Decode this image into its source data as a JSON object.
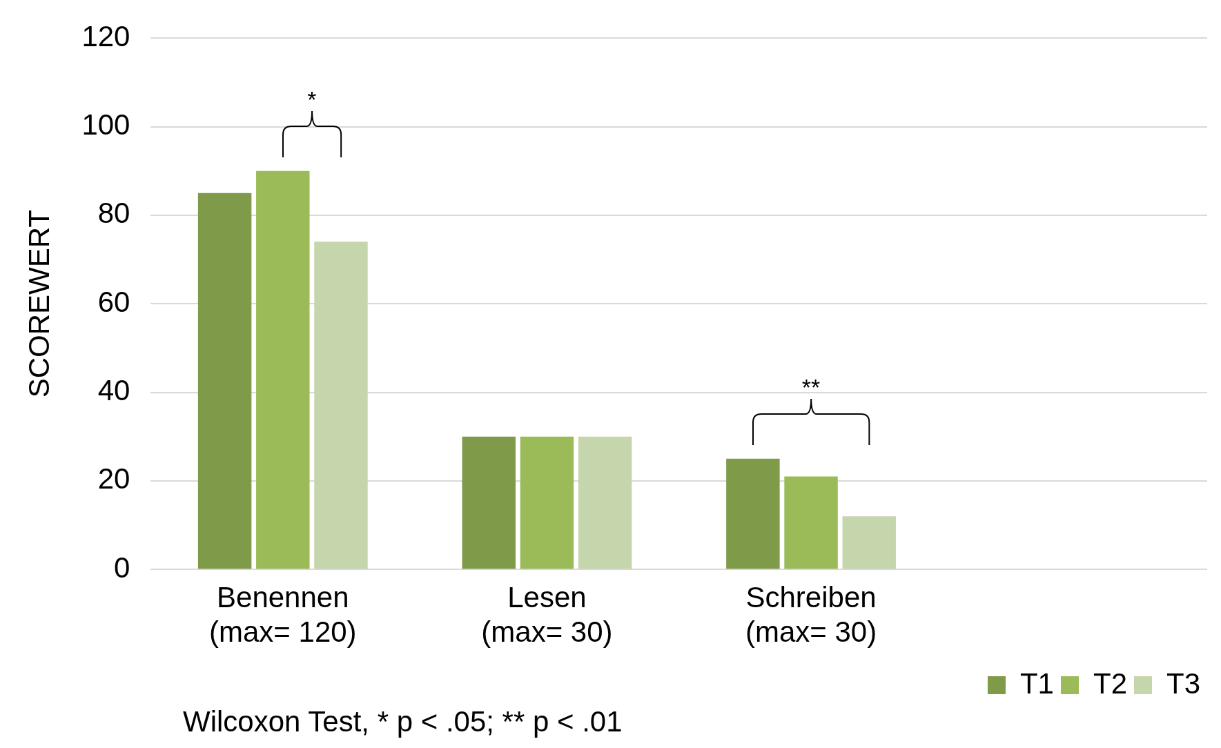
{
  "chart_data": {
    "type": "bar",
    "ylabel": "SCOREWERT",
    "categories": [
      "Benennen\n(max= 120)",
      "Lesen\n(max= 30)",
      "Schreiben\n(max= 30)",
      null
    ],
    "series": [
      {
        "name": "T1",
        "color": "#7f9a48",
        "values": [
          85,
          30,
          25,
          null
        ]
      },
      {
        "name": "T2",
        "color": "#9bbb59",
        "values": [
          90,
          30,
          21,
          null
        ]
      },
      {
        "name": "T3",
        "color": "#c6d6ac",
        "values": [
          74,
          30,
          12,
          null
        ]
      }
    ],
    "ylim": [
      0,
      120
    ],
    "yticks": [
      0,
      20,
      40,
      60,
      80,
      100,
      120
    ],
    "grid": "y",
    "legend": "bottom right",
    "annotations": [
      "*",
      "**",
      "Wilcoxon Test, * p < .05; ** p < .01"
    ]
  }
}
